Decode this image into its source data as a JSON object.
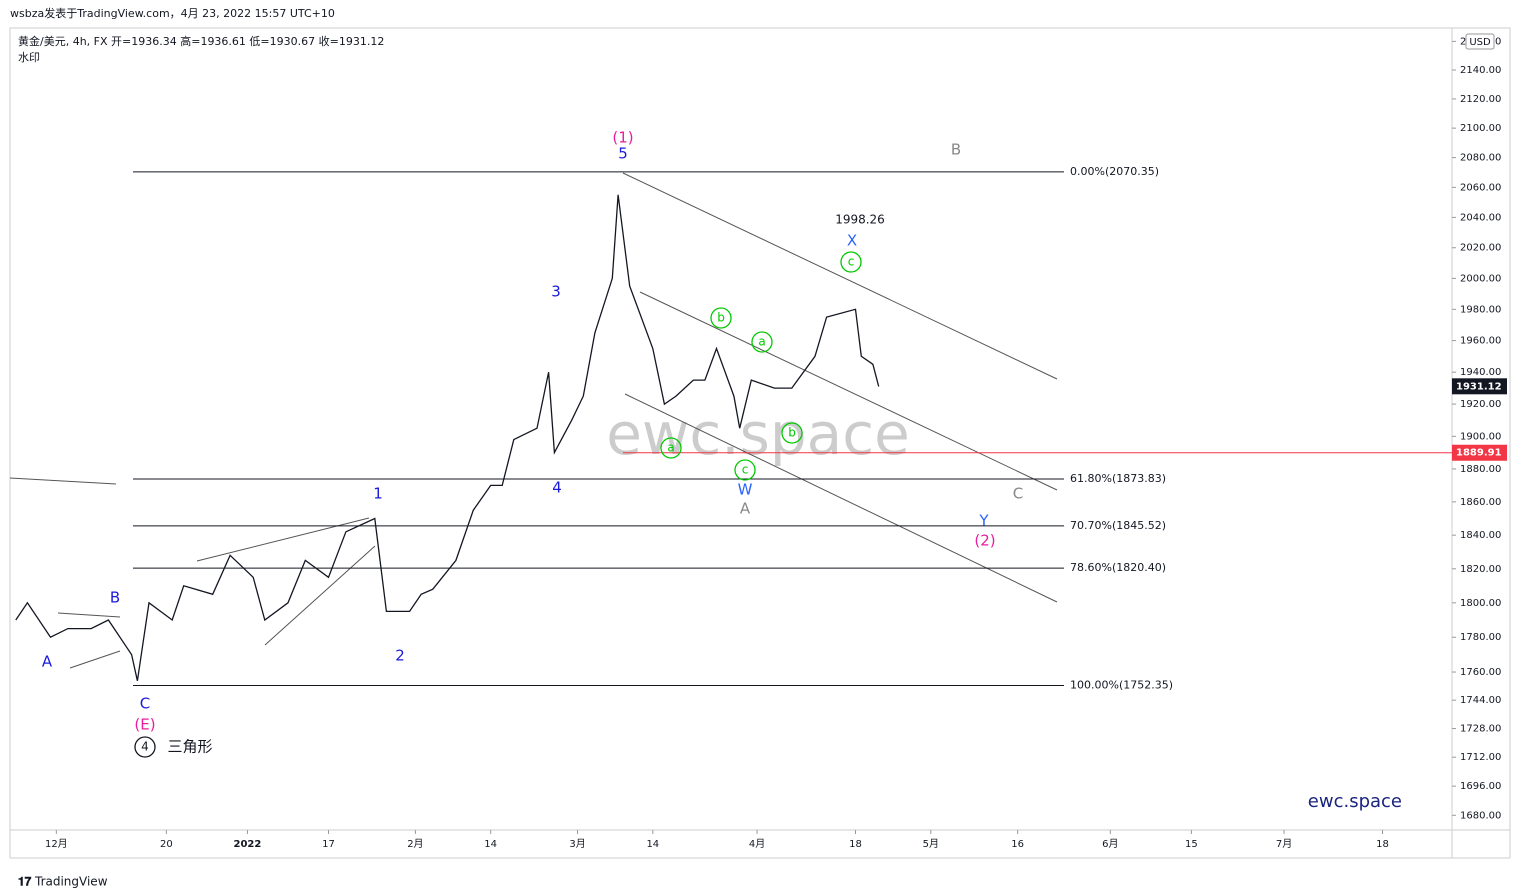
{
  "header": {
    "text": "wsbza发表于TradingView.com，4月 23, 2022 15:57 UTC+10"
  },
  "footer": {
    "brand": "TradingView"
  },
  "chart_data": {
    "type": "line",
    "title": "黄金/美元, 4h, FX  开=1936.34  高=1936.61  低=1930.67  收=1931.12",
    "subtitle": "水印",
    "watermark": "ewc.space",
    "signature": "ewc.space",
    "currency": "USD",
    "log_scale": true,
    "color": "#131722",
    "xlim": [
      "2021-11-23",
      "2022-07-30"
    ],
    "ylim": [
      1672,
      2168
    ],
    "yticks": [
      {
        "value": 1680,
        "label": "1680.00"
      },
      {
        "value": 1696,
        "label": "1696.00"
      },
      {
        "value": 1712,
        "label": "1712.00"
      },
      {
        "value": 1728,
        "label": "1728.00"
      },
      {
        "value": 1744,
        "label": "1744.00"
      },
      {
        "value": 1760,
        "label": "1760.00"
      },
      {
        "value": 1780,
        "label": "1780.00"
      },
      {
        "value": 1800,
        "label": "1800.00"
      },
      {
        "value": 1820,
        "label": "1820.00"
      },
      {
        "value": 1840,
        "label": "1840.00"
      },
      {
        "value": 1860,
        "label": "1860.00"
      },
      {
        "value": 1880,
        "label": "1880.00"
      },
      {
        "value": 1900,
        "label": "1900.00"
      },
      {
        "value": 1920,
        "label": "1920.00"
      },
      {
        "value": 1940,
        "label": "1940.00"
      },
      {
        "value": 1960,
        "label": "1960.00"
      },
      {
        "value": 1980,
        "label": "1980.00"
      },
      {
        "value": 2000,
        "label": "2000.00"
      },
      {
        "value": 2020,
        "label": "2020.00"
      },
      {
        "value": 2040,
        "label": "2040.00"
      },
      {
        "value": 2060,
        "label": "2060.00"
      },
      {
        "value": 2080,
        "label": "2080.00"
      },
      {
        "value": 2100,
        "label": "2100.00"
      },
      {
        "value": 2120,
        "label": "2120.00"
      },
      {
        "value": 2140,
        "label": "2140.00"
      },
      {
        "value": 2160,
        "label": "2160.00"
      }
    ],
    "xticks": [
      {
        "value": "2021-12-01",
        "label": "12月"
      },
      {
        "value": "2021-12-20",
        "label": "20"
      },
      {
        "value": "2022-01-03",
        "label": "2022"
      },
      {
        "value": "2022-01-17",
        "label": "17"
      },
      {
        "value": "2022-02-01",
        "label": "2月"
      },
      {
        "value": "2022-02-14",
        "label": "14"
      },
      {
        "value": "2022-03-01",
        "label": "3月"
      },
      {
        "value": "2022-03-14",
        "label": "14"
      },
      {
        "value": "2022-04-01",
        "label": "4月"
      },
      {
        "value": "2022-04-18",
        "label": "18"
      },
      {
        "value": "2022-05-01",
        "label": "5月"
      },
      {
        "value": "2022-05-16",
        "label": "16"
      },
      {
        "value": "2022-06-01",
        "label": "6月"
      },
      {
        "value": "2022-06-15",
        "label": "15"
      },
      {
        "value": "2022-07-01",
        "label": "7月"
      },
      {
        "value": "2022-07-18",
        "label": "18"
      }
    ],
    "x": [
      "2021-11-24",
      "2021-11-26",
      "2021-11-30",
      "2021-12-03",
      "2021-12-07",
      "2021-12-10",
      "2021-12-14",
      "2021-12-15",
      "2021-12-17",
      "2021-12-21",
      "2021-12-23",
      "2021-12-28",
      "2021-12-31",
      "2022-01-04",
      "2022-01-06",
      "2022-01-10",
      "2022-01-13",
      "2022-01-17",
      "2022-01-20",
      "2022-01-25",
      "2022-01-27",
      "2022-01-31",
      "2022-02-02",
      "2022-02-04",
      "2022-02-08",
      "2022-02-11",
      "2022-02-14",
      "2022-02-16",
      "2022-02-18",
      "2022-02-22",
      "2022-02-24",
      "2022-02-25",
      "2022-02-28",
      "2022-03-02",
      "2022-03-04",
      "2022-03-07",
      "2022-03-08",
      "2022-03-10",
      "2022-03-14",
      "2022-03-16",
      "2022-03-18",
      "2022-03-21",
      "2022-03-23",
      "2022-03-25",
      "2022-03-28",
      "2022-03-29",
      "2022-03-31",
      "2022-04-04",
      "2022-04-07",
      "2022-04-11",
      "2022-04-13",
      "2022-04-18",
      "2022-04-19",
      "2022-04-21",
      "2022-04-22"
    ],
    "values": [
      1790,
      1800,
      1780,
      1785,
      1785,
      1790,
      1770,
      1755,
      1800,
      1790,
      1810,
      1805,
      1828,
      1815,
      1790,
      1800,
      1825,
      1815,
      1842,
      1850,
      1795,
      1795,
      1805,
      1808,
      1825,
      1855,
      1870,
      1870,
      1898,
      1905,
      1940,
      1890,
      1910,
      1925,
      1965,
      2000,
      2055,
      1995,
      1955,
      1920,
      1925,
      1935,
      1935,
      1955,
      1925,
      1905,
      1935,
      1930,
      1930,
      1950,
      1975,
      1980,
      1950,
      1945,
      1931
    ],
    "last_price": {
      "value": 1931.12,
      "label": "1931.12"
    },
    "level_line": {
      "value": 1889.91,
      "label": "1889.91",
      "color": "#f23645"
    },
    "fib_levels": [
      {
        "value": 2070.35,
        "label": "0.00%(2070.35)"
      },
      {
        "value": 1873.83,
        "label": "61.80%(1873.83)"
      },
      {
        "value": 1845.52,
        "label": "70.70%(1845.52)"
      },
      {
        "value": 1820.4,
        "label": "78.60%(1820.40)"
      },
      {
        "value": 1752.35,
        "label": "100.00%(1752.35)"
      }
    ],
    "annotations": [
      {
        "text": "(1)",
        "color": "#e91e9c"
      },
      {
        "text": "5",
        "color": "#1a1adb"
      },
      {
        "text": "B",
        "color": "#888888"
      },
      {
        "text": "1998.26",
        "color": "#131722"
      },
      {
        "text": "X",
        "color": "#2962ff"
      },
      {
        "text": "c",
        "color": "#00c800",
        "circled": true
      },
      {
        "text": "3",
        "color": "#1a1adb"
      },
      {
        "text": "b",
        "color": "#00c800",
        "circled": true
      },
      {
        "text": "a",
        "color": "#00c800",
        "circled": true
      },
      {
        "text": "b",
        "color": "#00c800",
        "circled": true
      },
      {
        "text": "a",
        "color": "#00c800",
        "circled": true
      },
      {
        "text": "c",
        "color": "#00c800",
        "circled": true
      },
      {
        "text": "4",
        "color": "#1a1adb"
      },
      {
        "text": "W",
        "color": "#2962ff"
      },
      {
        "text": "A",
        "color": "#888888"
      },
      {
        "text": "1",
        "color": "#1a1adb"
      },
      {
        "text": "C",
        "color": "#888888"
      },
      {
        "text": "Y",
        "color": "#2962ff"
      },
      {
        "text": "(2)",
        "color": "#e91e9c"
      },
      {
        "text": "B",
        "color": "#1a1adb"
      },
      {
        "text": "A",
        "color": "#1a1adb"
      },
      {
        "text": "2",
        "color": "#1a1adb"
      },
      {
        "text": "C",
        "color": "#1a1adb"
      },
      {
        "text": "(E)",
        "color": "#e91e9c"
      },
      {
        "text": "4",
        "color": "#131722",
        "circled": true
      },
      {
        "text": "三角形",
        "color": "#131722"
      }
    ]
  }
}
